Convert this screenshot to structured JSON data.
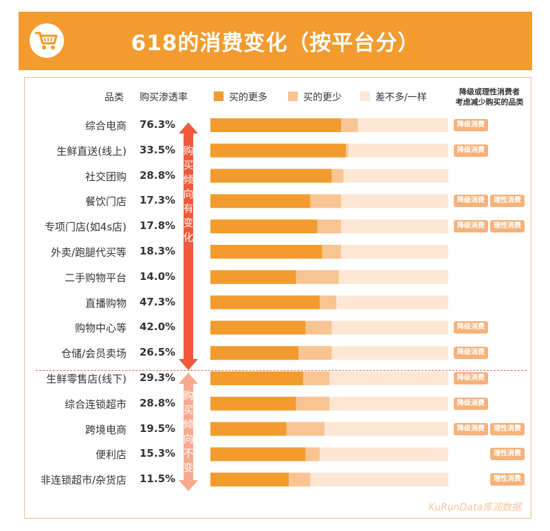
{
  "header": {
    "title": "618的消费变化（按平台分）",
    "icon": "shopping-cart-icon"
  },
  "columns": {
    "category": "品类",
    "rate": "购买渗透率",
    "note": [
      "降级或理性消费者",
      "考虑减少购买的品类"
    ]
  },
  "legend": [
    {
      "label": "买的更多",
      "color": "#f29b2e"
    },
    {
      "label": "买的更少",
      "color": "#f7c492"
    },
    {
      "label": "差不多/一样",
      "color": "#fde7d4"
    }
  ],
  "arrows": {
    "upper": "购买倾向有变化",
    "lower": "购买倾向不变",
    "upper_color": "#f05a3a",
    "lower_color": "#f7a98e"
  },
  "tags": {
    "downgrade": "降级消费",
    "rational": "理性消费"
  },
  "chart_data": {
    "type": "bar",
    "stacked": true,
    "orientation": "horizontal",
    "title": "618的消费变化（按平台分）",
    "xlim": [
      0,
      100
    ],
    "series": [
      {
        "name": "买的更多",
        "color": "#f29b2e"
      },
      {
        "name": "买的更少",
        "color": "#f7c492"
      },
      {
        "name": "差不多/一样",
        "color": "#fde7d4"
      }
    ],
    "rows": [
      {
        "category": "综合电商",
        "rate": "76.3%",
        "values": [
          55,
          7,
          38
        ],
        "tags": [
          "downgrade"
        ]
      },
      {
        "category": "生鲜直送(线上)",
        "rate": "33.5%",
        "values": [
          57,
          1,
          42
        ],
        "tags": [
          "downgrade"
        ]
      },
      {
        "category": "社交团购",
        "rate": "28.8%",
        "values": [
          51,
          5,
          44
        ],
        "tags": []
      },
      {
        "category": "餐饮门店",
        "rate": "17.3%",
        "values": [
          42,
          13,
          45
        ],
        "tags": [
          "downgrade",
          "rational"
        ]
      },
      {
        "category": "专项门店(如4s店)",
        "rate": "17.8%",
        "values": [
          45,
          10,
          45
        ],
        "tags": [
          "downgrade",
          "rational"
        ]
      },
      {
        "category": "外卖/跑腿代买等",
        "rate": "18.3%",
        "values": [
          47,
          8,
          45
        ],
        "tags": []
      },
      {
        "category": "二手购物平台",
        "rate": "14.0%",
        "values": [
          36,
          18,
          46
        ],
        "tags": []
      },
      {
        "category": "直播购物",
        "rate": "47.3%",
        "values": [
          46,
          7,
          47
        ],
        "tags": []
      },
      {
        "category": "购物中心等",
        "rate": "42.0%",
        "values": [
          40,
          11,
          49
        ],
        "tags": [
          "downgrade"
        ]
      },
      {
        "category": "仓储/会员卖场",
        "rate": "26.5%",
        "values": [
          37,
          14,
          49
        ],
        "tags": [
          "downgrade"
        ]
      },
      {
        "category": "生鲜零售店(线下)",
        "rate": "29.3%",
        "values": [
          39,
          11,
          50
        ],
        "tags": [
          "downgrade"
        ]
      },
      {
        "category": "综合连锁超市",
        "rate": "28.8%",
        "values": [
          36,
          14,
          50
        ],
        "tags": [
          "downgrade"
        ]
      },
      {
        "category": "跨境电商",
        "rate": "19.5%",
        "values": [
          32,
          16,
          52
        ],
        "tags": [
          "downgrade",
          "rational"
        ]
      },
      {
        "category": "便利店",
        "rate": "15.3%",
        "values": [
          40,
          6,
          54
        ],
        "tags": [
          "rational"
        ]
      },
      {
        "category": "非连锁超市/杂货店",
        "rate": "11.5%",
        "values": [
          33,
          9,
          58
        ],
        "tags": [
          "rational"
        ]
      }
    ]
  },
  "watermark": "KuRunData库润数据"
}
